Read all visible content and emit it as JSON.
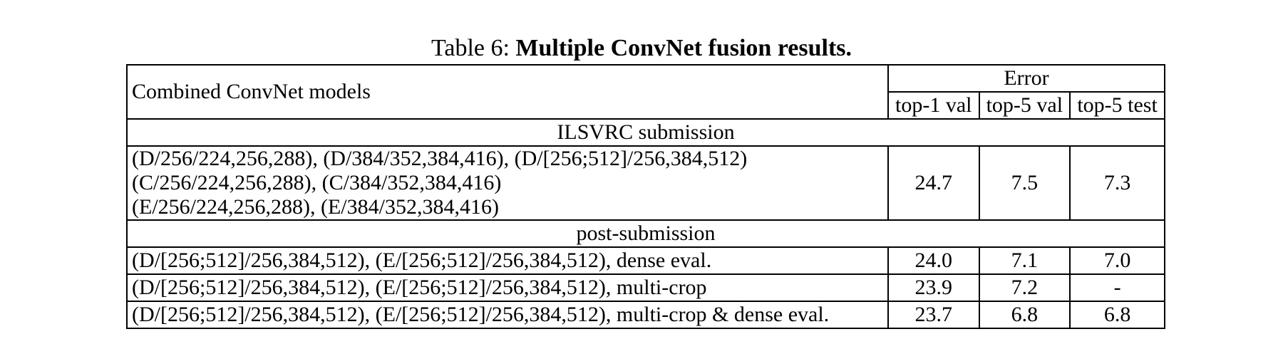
{
  "caption": {
    "prefix": "Table 6:",
    "title": "Multiple ConvNet fusion results."
  },
  "header": {
    "model_col": "Combined ConvNet models",
    "error_group": "Error",
    "cols": [
      "top-1 val",
      "top-5 val",
      "top-5 test"
    ]
  },
  "sections": [
    {
      "label": "ILSVRC submission",
      "rows": [
        {
          "model_lines": [
            "(D/256/224,256,288), (D/384/352,384,416), (D/[256;512]/256,384,512)",
            "(C/256/224,256,288), (C/384/352,384,416)",
            "(E/256/224,256,288), (E/384/352,384,416)"
          ],
          "values": [
            "24.7",
            "7.5",
            "7.3"
          ]
        }
      ]
    },
    {
      "label": "post-submission",
      "rows": [
        {
          "model": "(D/[256;512]/256,384,512), (E/[256;512]/256,384,512), dense eval.",
          "values": [
            "24.0",
            "7.1",
            "7.0"
          ]
        },
        {
          "model": "(D/[256;512]/256,384,512), (E/[256;512]/256,384,512), multi-crop",
          "values": [
            "23.9",
            "7.2",
            "-"
          ]
        },
        {
          "model": "(D/[256;512]/256,384,512), (E/[256;512]/256,384,512), multi-crop & dense eval.",
          "values": [
            "23.7",
            "6.8",
            "6.8"
          ]
        }
      ]
    }
  ]
}
